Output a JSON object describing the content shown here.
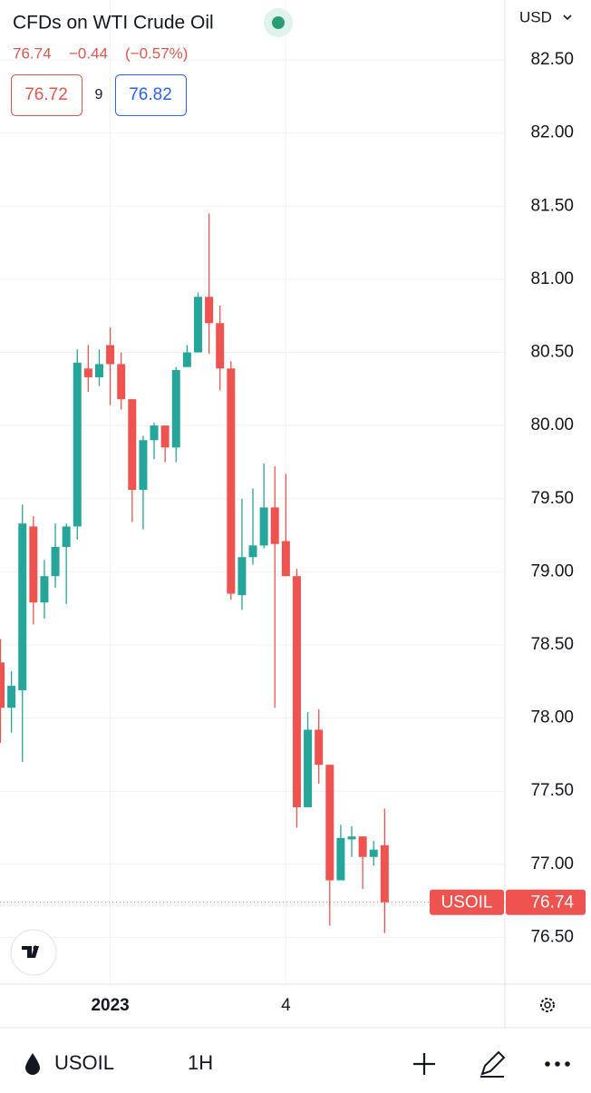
{
  "header": {
    "title": "CFDs on WTI Crude Oil",
    "price": "76.74",
    "change": "−0.44",
    "change_pct": "(−0.57%)",
    "currency": "USD",
    "bid": "76.72",
    "spread": "9",
    "ask": "76.82"
  },
  "toolbar": {
    "symbol": "USOIL",
    "interval": "1H"
  },
  "chart_data": {
    "type": "candlestick",
    "categories": [
      null,
      null,
      null,
      null,
      null,
      null,
      null,
      null,
      null,
      null,
      "2023",
      null,
      null,
      null,
      null,
      null,
      null,
      null,
      null,
      null,
      null,
      null,
      null,
      null,
      null,
      null,
      "4",
      null,
      null,
      null,
      null,
      null,
      null,
      null,
      null,
      null
    ],
    "open": [
      78.38,
      78.07,
      78.19,
      79.31,
      78.79,
      78.97,
      79.17,
      79.31,
      80.39,
      80.33,
      80.55,
      80.42,
      80.18,
      79.56,
      79.9,
      80.0,
      79.85,
      80.4,
      80.5,
      80.88,
      80.7,
      80.39,
      78.84,
      79.1,
      79.18,
      79.44,
      79.21,
      78.97,
      77.39,
      77.92,
      77.68,
      76.89,
      77.17,
      77.19,
      77.05,
      77.13
    ],
    "high": [
      78.54,
      78.32,
      79.46,
      79.38,
      79.08,
      79.33,
      79.33,
      80.52,
      80.55,
      80.52,
      80.67,
      80.5,
      80.18,
      79.93,
      80.02,
      80.0,
      80.4,
      80.55,
      80.91,
      81.45,
      80.82,
      80.44,
      79.5,
      79.57,
      79.74,
      79.72,
      79.67,
      79.02,
      78.04,
      78.06,
      77.68,
      77.27,
      77.26,
      77.19,
      77.16,
      77.38
    ],
    "low": [
      77.83,
      77.9,
      77.7,
      78.64,
      78.68,
      78.89,
      78.78,
      79.22,
      80.23,
      80.27,
      80.14,
      80.11,
      79.34,
      79.29,
      79.77,
      79.75,
      79.75,
      80.4,
      80.5,
      80.49,
      80.24,
      78.81,
      78.74,
      79.05,
      79.16,
      78.07,
      78.97,
      77.25,
      77.39,
      77.55,
      76.58,
      76.89,
      77.05,
      76.83,
      76.99,
      76.53
    ],
    "close": [
      78.07,
      78.22,
      79.33,
      78.79,
      78.97,
      79.17,
      79.31,
      80.43,
      80.33,
      80.42,
      80.42,
      80.18,
      79.56,
      79.9,
      80.0,
      79.85,
      80.38,
      80.5,
      80.88,
      80.7,
      80.39,
      78.85,
      79.1,
      79.18,
      79.44,
      79.19,
      78.97,
      77.39,
      77.92,
      77.68,
      76.89,
      77.18,
      77.19,
      77.05,
      77.1,
      76.74
    ],
    "up_color": "#26a69a",
    "down_color": "#ef5350",
    "ylim": [
      76.18,
      82.91
    ],
    "yticks": [
      {
        "value": 76.5,
        "label": "76.50"
      },
      {
        "value": 77,
        "label": "77.00"
      },
      {
        "value": 77.5,
        "label": "77.50"
      },
      {
        "value": 78,
        "label": "78.00"
      },
      {
        "value": 78.5,
        "label": "78.50"
      },
      {
        "value": 79,
        "label": "79.00"
      },
      {
        "value": 79.5,
        "label": "79.50"
      },
      {
        "value": 80,
        "label": "80.00"
      },
      {
        "value": 80.5,
        "label": "80.50"
      },
      {
        "value": 81,
        "label": "81.00"
      },
      {
        "value": 81.5,
        "label": "81.50"
      },
      {
        "value": 82,
        "label": "82.00"
      },
      {
        "value": 82.5,
        "label": "82.50"
      }
    ],
    "grid": true,
    "price_line": {
      "name": "USOIL",
      "value": 76.74
    }
  }
}
